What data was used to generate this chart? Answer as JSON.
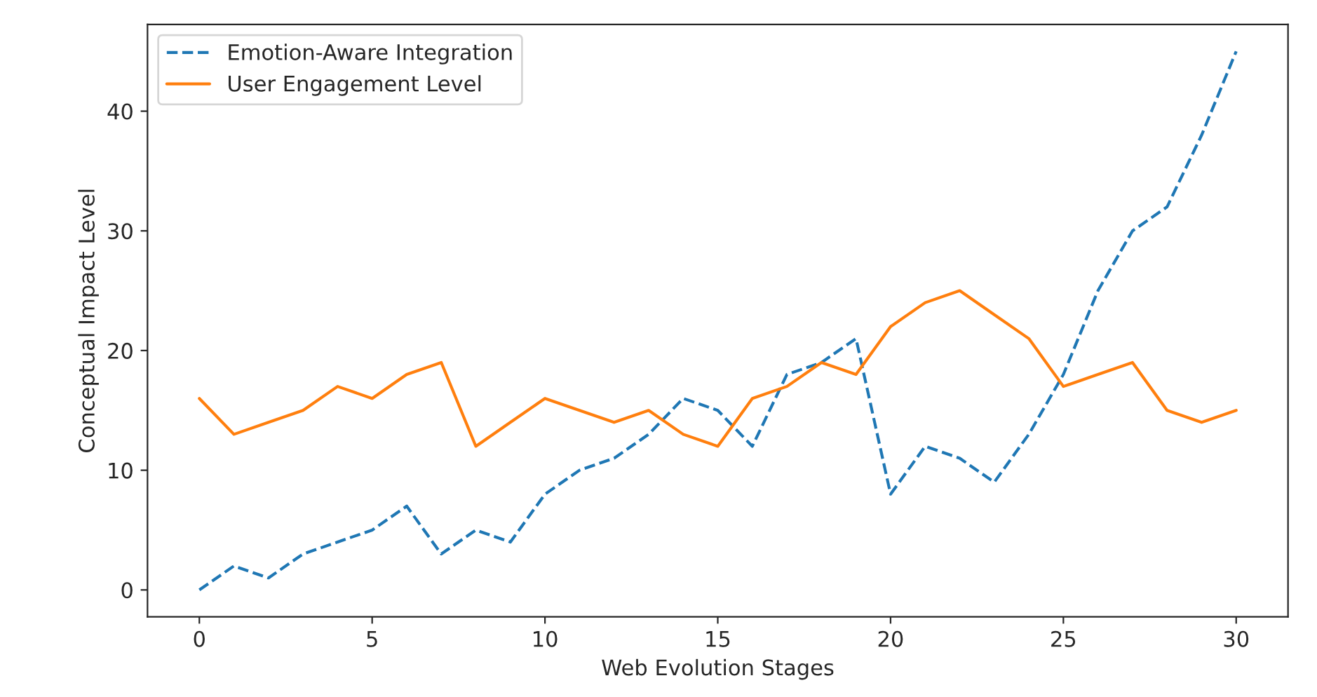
{
  "chart_data": {
    "type": "line",
    "xlabel": "Web Evolution Stages",
    "ylabel": "Conceptual Impact Level",
    "x": [
      0,
      1,
      2,
      3,
      4,
      5,
      6,
      7,
      8,
      9,
      10,
      11,
      12,
      13,
      14,
      15,
      16,
      17,
      18,
      19,
      20,
      21,
      22,
      23,
      24,
      25,
      26,
      27,
      28,
      29,
      30
    ],
    "series": [
      {
        "name": "Emotion-Aware Integration",
        "color": "#1f77b4",
        "line_style": "dashed",
        "values": [
          0,
          2,
          1,
          3,
          4,
          5,
          7,
          3,
          5,
          4,
          8,
          10,
          11,
          13,
          16,
          15,
          12,
          18,
          19,
          21,
          8,
          12,
          11,
          9,
          13,
          18,
          25,
          30,
          32,
          38,
          45
        ]
      },
      {
        "name": "User Engagement Level",
        "color": "#ff7f0e",
        "line_style": "solid",
        "values": [
          16,
          13,
          14,
          15,
          17,
          16,
          18,
          19,
          12,
          14,
          16,
          15,
          14,
          15,
          13,
          12,
          16,
          17,
          19,
          18,
          22,
          24,
          25,
          23,
          21,
          17,
          18,
          19,
          15,
          14,
          15
        ]
      }
    ],
    "xlim": [
      -1.5,
      31.5
    ],
    "ylim": [
      -2.25,
      47.25
    ],
    "xticks": [
      0,
      5,
      10,
      15,
      20,
      25,
      30
    ],
    "yticks": [
      0,
      10,
      20,
      30,
      40
    ],
    "legend": "top left",
    "grid": false
  }
}
